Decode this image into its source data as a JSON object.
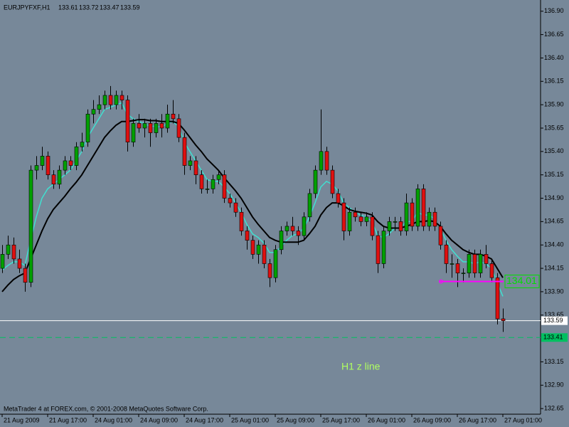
{
  "chart_data": {
    "type": "candlestick",
    "title": "EURJPYFXF,H1",
    "footer": "MetaTrader 4 at FOREX.com, © 2001-2008 MetaQuotes Software Corp.",
    "annotation": "H1 z line",
    "background": "#778899",
    "bull_color": "#00a000",
    "bear_color": "#e01010",
    "ylim": [
      132.59,
      137.02
    ],
    "yticks": [
      {
        "value": 136.9,
        "label": "136.90"
      },
      {
        "value": 136.65,
        "label": "136.65"
      },
      {
        "value": 136.4,
        "label": "136.40"
      },
      {
        "value": 136.15,
        "label": "136.15"
      },
      {
        "value": 135.9,
        "label": "135.90"
      },
      {
        "value": 135.65,
        "label": "135.65"
      },
      {
        "value": 135.4,
        "label": "135.40"
      },
      {
        "value": 135.15,
        "label": "135.15"
      },
      {
        "value": 134.9,
        "label": "134.90"
      },
      {
        "value": 134.65,
        "label": "134.65"
      },
      {
        "value": 134.4,
        "label": "134.40"
      },
      {
        "value": 134.15,
        "label": "134.15"
      },
      {
        "value": 133.9,
        "label": "133.90"
      },
      {
        "value": 133.65,
        "label": "133.65"
      },
      {
        "value": 133.15,
        "label": "133.15"
      },
      {
        "value": 132.9,
        "label": "132.90"
      },
      {
        "value": 132.65,
        "label": "132.65"
      }
    ],
    "level_line": {
      "value": 133.41,
      "color": "#00c060"
    },
    "z_line": {
      "value": 134.01,
      "color": "#ff00ff",
      "label_color": "#00e000"
    },
    "categories": [
      "21 Aug 2009",
      null,
      null,
      null,
      null,
      null,
      null,
      null,
      "21 Aug 17:00",
      null,
      null,
      null,
      null,
      null,
      null,
      null,
      "24 Aug 01:00",
      null,
      null,
      null,
      null,
      null,
      null,
      null,
      "24 Aug 09:00",
      null,
      null,
      null,
      null,
      null,
      null,
      null,
      "24 Aug 17:00",
      null,
      null,
      null,
      null,
      null,
      null,
      null,
      "25 Aug 01:00",
      null,
      null,
      null,
      null,
      null,
      null,
      null,
      "25 Aug 09:00",
      null,
      null,
      null,
      null,
      null,
      null,
      null,
      "25 Aug 17:00",
      null,
      null,
      null,
      null,
      null,
      null,
      null,
      "26 Aug 01:00",
      null,
      null,
      null,
      null,
      null,
      null,
      null,
      "26 Aug 09:00",
      null,
      null,
      null,
      null,
      null,
      null,
      null,
      "26 Aug 17:00",
      null,
      null,
      null,
      null,
      null,
      null,
      null,
      "27 Aug 01:00"
    ],
    "ohlc": [
      [
        134.15,
        134.4,
        134.1,
        134.3
      ],
      [
        134.3,
        134.5,
        134.25,
        134.4
      ],
      [
        134.4,
        134.48,
        134.2,
        134.25
      ],
      [
        134.25,
        134.35,
        134.1,
        134.15
      ],
      [
        134.15,
        134.2,
        133.9,
        134.0
      ],
      [
        134.0,
        135.25,
        133.95,
        135.2
      ],
      [
        135.2,
        135.35,
        135.1,
        135.25
      ],
      [
        135.25,
        135.45,
        135.2,
        135.35
      ],
      [
        135.35,
        135.4,
        135.1,
        135.15
      ],
      [
        135.15,
        135.2,
        135.0,
        135.05
      ],
      [
        135.05,
        135.25,
        135.0,
        135.2
      ],
      [
        135.2,
        135.35,
        135.15,
        135.3
      ],
      [
        135.3,
        135.35,
        135.2,
        135.25
      ],
      [
        135.25,
        135.5,
        135.2,
        135.45
      ],
      [
        135.45,
        135.6,
        135.4,
        135.5
      ],
      [
        135.5,
        135.85,
        135.45,
        135.8
      ],
      [
        135.8,
        135.95,
        135.7,
        135.85
      ],
      [
        135.85,
        136.0,
        135.8,
        135.9
      ],
      [
        135.9,
        136.05,
        135.85,
        136.0
      ],
      [
        136.0,
        136.1,
        135.85,
        135.9
      ],
      [
        135.9,
        136.05,
        135.85,
        136.0
      ],
      [
        136.0,
        136.05,
        135.85,
        135.95
      ],
      [
        135.95,
        136.0,
        135.4,
        135.5
      ],
      [
        135.5,
        135.75,
        135.45,
        135.7
      ],
      [
        135.7,
        135.8,
        135.6,
        135.65
      ],
      [
        135.65,
        135.75,
        135.55,
        135.7
      ],
      [
        135.7,
        135.75,
        135.45,
        135.6
      ],
      [
        135.6,
        135.75,
        135.55,
        135.7
      ],
      [
        135.7,
        135.8,
        135.55,
        135.65
      ],
      [
        135.65,
        135.9,
        135.6,
        135.8
      ],
      [
        135.8,
        135.95,
        135.7,
        135.75
      ],
      [
        135.75,
        135.8,
        135.5,
        135.55
      ],
      [
        135.55,
        135.6,
        135.15,
        135.25
      ],
      [
        135.25,
        135.35,
        135.2,
        135.3
      ],
      [
        135.3,
        135.35,
        135.05,
        135.15
      ],
      [
        135.15,
        135.2,
        134.95,
        135.0
      ],
      [
        135.0,
        135.1,
        134.95,
        135.0
      ],
      [
        135.0,
        135.15,
        134.95,
        135.1
      ],
      [
        135.1,
        135.2,
        135.05,
        135.15
      ],
      [
        135.15,
        135.2,
        134.85,
        134.9
      ],
      [
        134.9,
        134.95,
        134.8,
        134.85
      ],
      [
        134.85,
        134.9,
        134.7,
        134.75
      ],
      [
        134.75,
        134.8,
        134.5,
        134.55
      ],
      [
        134.55,
        134.6,
        134.35,
        134.45
      ],
      [
        134.45,
        134.5,
        134.25,
        134.3
      ],
      [
        134.3,
        134.45,
        134.2,
        134.4
      ],
      [
        134.4,
        134.45,
        134.15,
        134.2
      ],
      [
        134.2,
        134.25,
        133.95,
        134.05
      ],
      [
        134.05,
        134.4,
        134.0,
        134.35
      ],
      [
        134.35,
        134.6,
        134.3,
        134.55
      ],
      [
        134.55,
        134.65,
        134.5,
        134.6
      ],
      [
        134.6,
        134.7,
        134.5,
        134.55
      ],
      [
        134.55,
        134.6,
        134.4,
        134.5
      ],
      [
        134.5,
        134.75,
        134.45,
        134.7
      ],
      [
        134.7,
        135.0,
        134.65,
        134.95
      ],
      [
        134.95,
        135.25,
        134.9,
        135.2
      ],
      [
        135.2,
        135.85,
        135.15,
        135.4
      ],
      [
        135.4,
        135.45,
        135.15,
        135.2
      ],
      [
        135.2,
        135.25,
        134.9,
        134.95
      ],
      [
        134.95,
        135.0,
        134.8,
        134.85
      ],
      [
        134.85,
        134.9,
        134.45,
        134.55
      ],
      [
        134.55,
        134.8,
        134.5,
        134.75
      ],
      [
        134.75,
        134.8,
        134.65,
        134.7
      ],
      [
        134.7,
        134.75,
        134.6,
        134.65
      ],
      [
        134.65,
        134.75,
        134.6,
        134.7
      ],
      [
        134.7,
        134.75,
        134.45,
        134.5
      ],
      [
        134.5,
        134.55,
        134.1,
        134.2
      ],
      [
        134.2,
        134.6,
        134.15,
        134.55
      ],
      [
        134.55,
        134.7,
        134.5,
        134.65
      ],
      [
        134.65,
        134.7,
        134.55,
        134.65
      ],
      [
        134.65,
        134.7,
        134.5,
        134.55
      ],
      [
        134.55,
        134.95,
        134.5,
        134.85
      ],
      [
        134.85,
        134.9,
        134.55,
        134.6
      ],
      [
        134.6,
        135.05,
        134.55,
        135.0
      ],
      [
        135.0,
        135.05,
        134.55,
        134.6
      ],
      [
        134.6,
        134.8,
        134.55,
        134.75
      ],
      [
        134.75,
        134.8,
        134.55,
        134.6
      ],
      [
        134.6,
        134.65,
        134.35,
        134.4
      ],
      [
        134.4,
        134.45,
        134.1,
        134.2
      ],
      [
        134.2,
        134.3,
        134.05,
        134.2
      ],
      [
        134.2,
        134.25,
        133.95,
        134.1
      ],
      [
        134.1,
        134.15,
        134.0,
        134.1
      ],
      [
        134.1,
        134.35,
        134.05,
        134.3
      ],
      [
        134.3,
        134.35,
        134.05,
        134.1
      ],
      [
        134.1,
        134.35,
        134.05,
        134.3
      ],
      [
        134.3,
        134.4,
        134.15,
        134.2
      ],
      [
        134.2,
        134.25,
        134.0,
        134.05
      ],
      [
        134.05,
        134.1,
        133.55,
        133.61
      ],
      [
        133.61,
        133.72,
        133.47,
        133.59
      ]
    ],
    "ma_lines": [
      {
        "color": "#40e0d0",
        "values": [
          134.13,
          134.18,
          134.22,
          134.22,
          134.18,
          134.45,
          134.7,
          134.9,
          135.0,
          135.05,
          135.1,
          135.15,
          135.2,
          135.3,
          135.4,
          135.55,
          135.65,
          135.75,
          135.85,
          135.87,
          135.9,
          135.92,
          135.8,
          135.75,
          135.72,
          135.7,
          135.67,
          135.67,
          135.66,
          135.7,
          135.72,
          135.67,
          135.5,
          135.4,
          135.3,
          135.2,
          135.1,
          135.08,
          135.08,
          135.02,
          134.95,
          134.85,
          134.75,
          134.62,
          134.52,
          134.48,
          134.42,
          134.32,
          134.32,
          134.38,
          134.45,
          134.5,
          134.52,
          134.58,
          134.7,
          134.85,
          135.02,
          135.08,
          135.05,
          134.98,
          134.85,
          134.8,
          134.75,
          134.72,
          134.7,
          134.65,
          134.5,
          134.48,
          134.52,
          134.58,
          134.58,
          134.65,
          134.65,
          134.75,
          134.72,
          134.72,
          134.68,
          134.58,
          134.45,
          134.35,
          134.28,
          134.22,
          134.22,
          134.2,
          134.22,
          134.2,
          134.15,
          134.0,
          133.85
        ]
      },
      {
        "color": "#000000",
        "values": [
          133.9,
          133.97,
          134.03,
          134.07,
          134.1,
          134.25,
          134.4,
          134.55,
          134.68,
          134.78,
          134.85,
          134.92,
          135.0,
          135.07,
          135.15,
          135.25,
          135.35,
          135.45,
          135.55,
          135.62,
          135.68,
          135.72,
          135.72,
          135.73,
          135.74,
          135.74,
          135.73,
          135.73,
          135.72,
          135.72,
          135.72,
          135.7,
          135.63,
          135.55,
          135.47,
          135.4,
          135.32,
          135.26,
          135.2,
          135.12,
          135.05,
          134.98,
          134.9,
          134.8,
          134.7,
          134.62,
          134.55,
          134.48,
          134.45,
          134.43,
          134.43,
          134.43,
          134.43,
          134.45,
          134.52,
          134.6,
          134.72,
          134.8,
          134.85,
          134.85,
          134.82,
          134.78,
          134.76,
          134.75,
          134.74,
          134.72,
          134.65,
          134.6,
          134.58,
          134.58,
          134.58,
          134.6,
          134.62,
          134.65,
          134.65,
          134.66,
          134.65,
          134.6,
          134.52,
          134.45,
          134.4,
          134.35,
          134.32,
          134.3,
          134.3,
          134.28,
          134.25,
          134.15,
          134.05
        ]
      }
    ]
  }
}
